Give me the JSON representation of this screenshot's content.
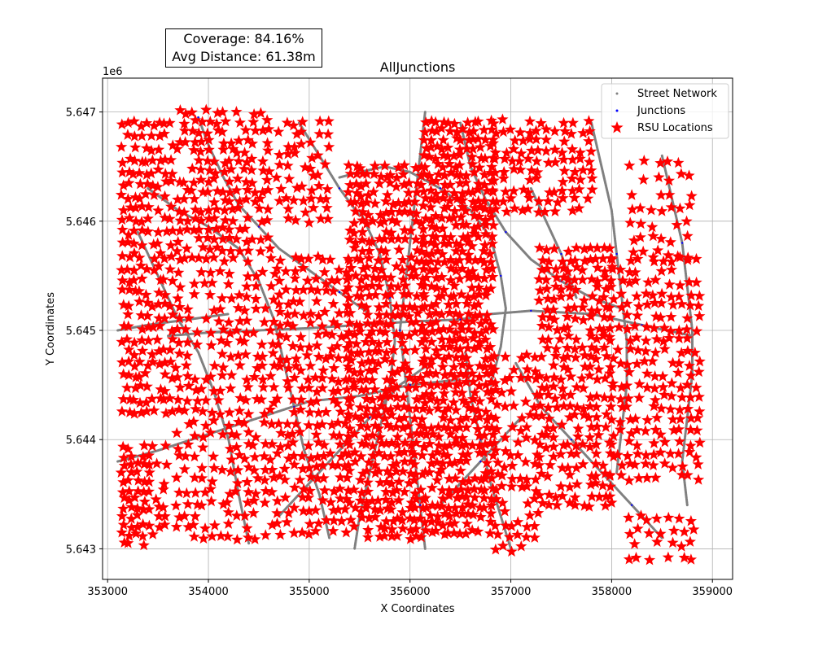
{
  "stats": {
    "coverage": "Coverage: 84.16%",
    "avg_distance": "Avg Distance: 61.38m"
  },
  "colors": {
    "street": "#808080",
    "junction": "#0000ff",
    "rsu": "#ff0000",
    "grid": "#b0b0b0"
  },
  "chart_data": {
    "type": "scatter",
    "title": "AllJunctions",
    "xlabel": "X Coordinates",
    "ylabel": "Y Coordinates",
    "y_offset_label": "1e6",
    "xlim": [
      352950,
      359200
    ],
    "ylim": [
      5642720,
      5647310
    ],
    "grid": true,
    "legend_position": "top-right",
    "x_ticks": [
      353000,
      354000,
      355000,
      356000,
      357000,
      358000,
      359000
    ],
    "x_tick_labels": [
      "353000",
      "354000",
      "355000",
      "356000",
      "357000",
      "358000",
      "359000"
    ],
    "y_ticks": [
      5643000,
      5644000,
      5645000,
      5646000,
      5647000
    ],
    "y_tick_labels": [
      "5.643",
      "5.644",
      "5.645",
      "5.646",
      "5.647"
    ],
    "legend": [
      "Street Network",
      "Junctions",
      "RSU Locations"
    ],
    "series": [
      {
        "name": "Street Network",
        "marker": "dot",
        "polylines": [
          [
            [
              353900,
              5646950
            ],
            [
              354000,
              5646700
            ],
            [
              354150,
              5646400
            ],
            [
              354300,
              5646150
            ],
            [
              354500,
              5645950
            ],
            [
              354700,
              5645750
            ],
            [
              355000,
              5645550
            ],
            [
              355300,
              5645350
            ],
            [
              355600,
              5645150
            ]
          ],
          [
            [
              353400,
              5646300
            ],
            [
              353700,
              5646100
            ],
            [
              354000,
              5645950
            ],
            [
              354300,
              5645750
            ],
            [
              354500,
              5645450
            ],
            [
              354650,
              5645100
            ],
            [
              354750,
              5644700
            ],
            [
              354850,
              5644300
            ],
            [
              354950,
              5643900
            ],
            [
              355100,
              5643500
            ],
            [
              355200,
              5643100
            ]
          ],
          [
            [
              353300,
              5645900
            ],
            [
              353500,
              5645500
            ],
            [
              353700,
              5645100
            ],
            [
              353900,
              5644800
            ],
            [
              354050,
              5644450
            ],
            [
              354200,
              5644000
            ],
            [
              354300,
              5643500
            ],
            [
              354400,
              5643050
            ]
          ],
          [
            [
              353600,
              5644950
            ],
            [
              354000,
              5644980
            ],
            [
              354500,
              5645000
            ],
            [
              355000,
              5645020
            ],
            [
              355500,
              5645050
            ],
            [
              356000,
              5645080
            ],
            [
              356500,
              5645100
            ],
            [
              356800,
              5645150
            ],
            [
              357200,
              5645180
            ],
            [
              357800,
              5645150
            ],
            [
              358300,
              5645050
            ],
            [
              358800,
              5644950
            ]
          ],
          [
            [
              353100,
              5643800
            ],
            [
              353500,
              5643900
            ],
            [
              354000,
              5644050
            ],
            [
              354500,
              5644200
            ],
            [
              355000,
              5644350
            ],
            [
              355500,
              5644400
            ],
            [
              356000,
              5644500
            ],
            [
              356500,
              5644550
            ]
          ],
          [
            [
              355300,
              5646400
            ],
            [
              355500,
              5646450
            ],
            [
              355750,
              5646500
            ],
            [
              356000,
              5646450
            ],
            [
              356300,
              5646300
            ],
            [
              356600,
              5646100
            ],
            [
              356800,
              5645850
            ],
            [
              356900,
              5645500
            ],
            [
              356950,
              5645200
            ],
            [
              356900,
              5644850
            ],
            [
              356800,
              5644500
            ]
          ],
          [
            [
              355500,
              5646100
            ],
            [
              355700,
              5645700
            ],
            [
              355800,
              5645300
            ],
            [
              355850,
              5644900
            ],
            [
              355800,
              5644500
            ],
            [
              355700,
              5644100
            ],
            [
              355600,
              5643700
            ],
            [
              355500,
              5643300
            ],
            [
              355450,
              5643000
            ]
          ],
          [
            [
              356150,
              5647000
            ],
            [
              356100,
              5646600
            ],
            [
              356050,
              5646200
            ],
            [
              356000,
              5645800
            ],
            [
              355950,
              5645400
            ],
            [
              355900,
              5645000
            ],
            [
              355950,
              5644600
            ],
            [
              356000,
              5644200
            ],
            [
              356050,
              5643800
            ],
            [
              356100,
              5643400
            ],
            [
              356150,
              5643000
            ]
          ],
          [
            [
              356500,
              5646900
            ],
            [
              356600,
              5646500
            ],
            [
              356750,
              5646200
            ],
            [
              356950,
              5645900
            ],
            [
              357200,
              5645650
            ],
            [
              357500,
              5645450
            ],
            [
              357800,
              5645300
            ],
            [
              358100,
              5645200
            ]
          ],
          [
            [
              356550,
              5644800
            ],
            [
              356600,
              5644400
            ],
            [
              356700,
              5644000
            ],
            [
              356800,
              5643600
            ],
            [
              356900,
              5643300
            ],
            [
              357000,
              5643000
            ]
          ],
          [
            [
              357050,
              5644700
            ],
            [
              357300,
              5644300
            ],
            [
              357600,
              5644000
            ],
            [
              357900,
              5643700
            ],
            [
              358200,
              5643400
            ],
            [
              358500,
              5643100
            ]
          ],
          [
            [
              357800,
              5646900
            ],
            [
              357900,
              5646500
            ],
            [
              358000,
              5646100
            ],
            [
              358050,
              5645700
            ],
            [
              358100,
              5645300
            ],
            [
              358150,
              5644900
            ],
            [
              358150,
              5644500
            ],
            [
              358100,
              5644100
            ],
            [
              358050,
              5643700
            ]
          ],
          [
            [
              357200,
              5646300
            ],
            [
              357350,
              5646000
            ],
            [
              357500,
              5645700
            ],
            [
              357650,
              5645300
            ]
          ],
          [
            [
              358500,
              5646600
            ],
            [
              358600,
              5646200
            ],
            [
              358700,
              5645800
            ],
            [
              358750,
              5645400
            ],
            [
              358800,
              5645000
            ],
            [
              358800,
              5644600
            ],
            [
              358750,
              5644200
            ],
            [
              358700,
              5643800
            ],
            [
              358750,
              5643400
            ]
          ],
          [
            [
              354700,
              5643300
            ],
            [
              355000,
              5643600
            ],
            [
              355300,
              5643900
            ],
            [
              355600,
              5644200
            ],
            [
              355900,
              5644500
            ],
            [
              356200,
              5644700
            ]
          ],
          [
            [
              353100,
              5645000
            ],
            [
              353400,
              5645050
            ],
            [
              353800,
              5645100
            ],
            [
              354200,
              5645150
            ]
          ],
          [
            [
              354900,
              5646900
            ],
            [
              355100,
              5646600
            ],
            [
              355300,
              5646300
            ],
            [
              355500,
              5646050
            ]
          ],
          [
            [
              356300,
              5643400
            ],
            [
              356500,
              5643600
            ],
            [
              356700,
              5643800
            ],
            [
              356900,
              5644000
            ],
            [
              357100,
              5644200
            ]
          ]
        ]
      },
      {
        "name": "Junctions",
        "marker": "dot",
        "points": [
          [
            353900,
            5646950
          ],
          [
            354500,
            5645950
          ],
          [
            355300,
            5645350
          ],
          [
            354650,
            5645100
          ],
          [
            354850,
            5644300
          ],
          [
            354050,
            5644450
          ],
          [
            355500,
            5645050
          ],
          [
            356500,
            5645100
          ],
          [
            357200,
            5645180
          ],
          [
            358300,
            5645050
          ],
          [
            355000,
            5644350
          ],
          [
            356000,
            5644500
          ],
          [
            356300,
            5646300
          ],
          [
            356900,
            5645500
          ],
          [
            355800,
            5645300
          ],
          [
            355700,
            5644100
          ],
          [
            356050,
            5646200
          ],
          [
            355900,
            5645000
          ],
          [
            356100,
            5643400
          ],
          [
            356950,
            5645900
          ],
          [
            357500,
            5645450
          ],
          [
            356700,
            5644000
          ],
          [
            357600,
            5644000
          ],
          [
            358200,
            5643400
          ],
          [
            358050,
            5645700
          ],
          [
            358150,
            5644500
          ],
          [
            357500,
            5645700
          ],
          [
            358700,
            5645800
          ],
          [
            358800,
            5644600
          ],
          [
            355600,
            5644200
          ],
          [
            353800,
            5645100
          ],
          [
            355300,
            5646300
          ],
          [
            356700,
            5643800
          ]
        ]
      },
      {
        "name": "RSU Locations",
        "marker": "star",
        "grids": [
          {
            "x0": 353150,
            "x1": 353650,
            "dx": 60,
            "y0": 5644250,
            "y1": 5646950,
            "dy": 110
          },
          {
            "x0": 353150,
            "x1": 353600,
            "dx": 70,
            "y0": 5643050,
            "y1": 5644000,
            "dy": 80
          },
          {
            "x0": 353700,
            "x1": 354600,
            "dx": 75,
            "y0": 5645650,
            "y1": 5647000,
            "dy": 90
          },
          {
            "x0": 353700,
            "x1": 354700,
            "dx": 85,
            "y0": 5643100,
            "y1": 5645550,
            "dy": 105
          },
          {
            "x0": 354700,
            "x1": 355200,
            "dx": 80,
            "y0": 5646000,
            "y1": 5646950,
            "dy": 100
          },
          {
            "x0": 354700,
            "x1": 355400,
            "dx": 75,
            "y0": 5643150,
            "y1": 5645650,
            "dy": 100
          },
          {
            "x0": 355400,
            "x1": 356150,
            "dx": 60,
            "y0": 5643100,
            "y1": 5646500,
            "dy": 85
          },
          {
            "x0": 356150,
            "x1": 356850,
            "dx": 60,
            "y0": 5643150,
            "y1": 5646950,
            "dy": 80
          },
          {
            "x0": 356850,
            "x1": 357250,
            "dx": 80,
            "y0": 5643000,
            "y1": 5644800,
            "dy": 110
          },
          {
            "x0": 356850,
            "x1": 357800,
            "dx": 85,
            "y0": 5646100,
            "y1": 5646950,
            "dy": 90
          },
          {
            "x0": 357300,
            "x1": 358000,
            "dx": 70,
            "y0": 5643400,
            "y1": 5645800,
            "dy": 90
          },
          {
            "x0": 358000,
            "x1": 358850,
            "dx": 85,
            "y0": 5643650,
            "y1": 5645650,
            "dy": 105
          },
          {
            "x0": 358200,
            "x1": 358850,
            "dx": 95,
            "y0": 5645700,
            "y1": 5646650,
            "dy": 140
          },
          {
            "x0": 358150,
            "x1": 358850,
            "dx": 110,
            "y0": 5642920,
            "y1": 5643350,
            "dy": 120
          }
        ]
      }
    ]
  }
}
